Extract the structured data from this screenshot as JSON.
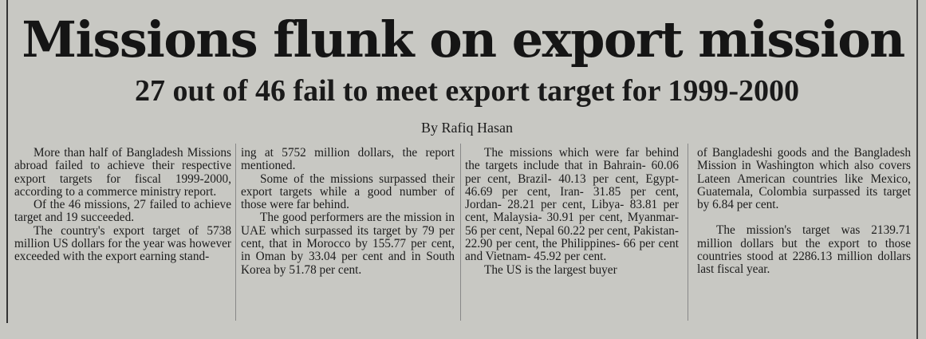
{
  "article": {
    "headline": "Missions flunk on export mission",
    "subheadline": "27 out of 46 fail to meet export target for 1999-2000",
    "byline": "By Rafiq Hasan",
    "columns": [
      {
        "paragraphs": [
          "More than half of Bangladesh Missions abroad failed to achieve their respective export targets for fiscal 1999-2000, according to a commerce ministry report.",
          "Of the 46 missions, 27 failed to achieve target and 19 succeeded.",
          "The country's export target of 5738 million US dollars for the year was however exceeded with the export earning stand-"
        ]
      },
      {
        "paragraphs": [
          "ing at 5752 million dollars, the report mentioned.",
          "Some of the missions surpassed their export targets while a good number of those were far behind.",
          "The good performers are the mission in UAE which surpassed its target by 79 per cent, that in Morocco by 155.77 per cent, in Oman by 33.04 per cent and in South Korea by 51.78 per cent."
        ]
      },
      {
        "paragraphs": [
          "The missions which were far behind the targets include that in Bahrain- 60.06 per cent, Brazil- 40.13 per cent, Egypt- 46.69 per cent, Iran- 31.85 per cent, Jordan- 28.21 per cent, Libya- 83.81 per cent, Malaysia- 30.91 per cent, Myanmar- 56 per cent, Nepal 60.22 per cent, Pakistan- 22.90 per cent, the Philippines- 66 per cent and Vietnam- 45.92 per cent.",
          "The US is the largest buyer"
        ]
      },
      {
        "paragraphs": [
          "of Bangladeshi goods and the Bangladesh Mission in Washington which also covers Lateen American countries like Mexico, Guatemala, Colombia surpassed its target by 6.84 per cent.",
          "The mission's target was 2139.71 million dollars but the export to those countries stood at 2286.13 million dollars last fiscal year."
        ]
      }
    ]
  }
}
